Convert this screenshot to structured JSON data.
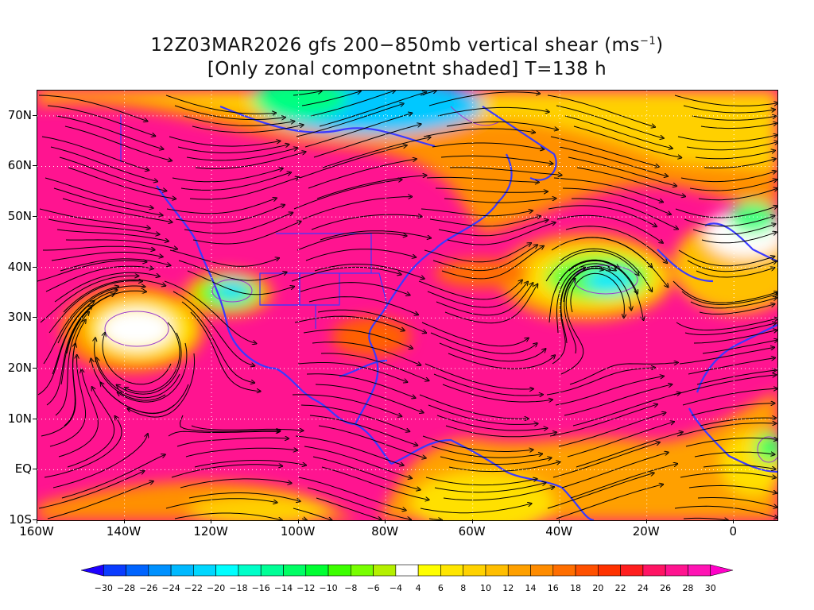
{
  "title": {
    "line1_prefix": "12Z03MAR2026 gfs 200−850mb vertical shear (ms",
    "line1_sup": "−1",
    "line1_suffix": ")",
    "line2": "[Only zonal componetnt shaded] T=138 h"
  },
  "map": {
    "lon_range": [
      -160,
      10
    ],
    "lat_range": [
      -10,
      75
    ],
    "lat_labels": [
      "70N",
      "60N",
      "50N",
      "40N",
      "30N",
      "20N",
      "10N",
      "EQ",
      "10S"
    ],
    "lat_values": [
      70,
      60,
      50,
      40,
      30,
      20,
      10,
      0,
      -10
    ],
    "lon_labels": [
      "160W",
      "140W",
      "120W",
      "100W",
      "80W",
      "60W",
      "40W",
      "20W",
      "0"
    ],
    "lon_values": [
      -160,
      -140,
      -120,
      -100,
      -80,
      -60,
      -40,
      -20,
      0
    ],
    "streamline_color": "#000000",
    "coastline_color": "#3a3aff",
    "grid_style": "dotted white"
  },
  "colorbar": {
    "labels": [
      "−30",
      "−28",
      "−26",
      "−24",
      "−22",
      "−20",
      "−18",
      "−16",
      "−14",
      "−12",
      "−10",
      "−8",
      "−6",
      "−4",
      "4",
      "6",
      "8",
      "10",
      "12",
      "14",
      "16",
      "18",
      "20",
      "22",
      "24",
      "26",
      "28",
      "30"
    ],
    "colors": [
      "#1e00ff",
      "#0a3cff",
      "#0064ff",
      "#0091ff",
      "#00b9ff",
      "#00d7ff",
      "#00ffff",
      "#00ffc8",
      "#00ff96",
      "#00ff64",
      "#00ff32",
      "#3cff00",
      "#78ff00",
      "#b4f000",
      "#ffffff",
      "#ffff00",
      "#ffe600",
      "#ffd200",
      "#ffbe00",
      "#ffa000",
      "#ff8c00",
      "#ff6e00",
      "#ff5000",
      "#ff3200",
      "#ff1e1e",
      "#ff1464",
      "#ff1490",
      "#ff14b4",
      "#ff00c8"
    ]
  }
}
